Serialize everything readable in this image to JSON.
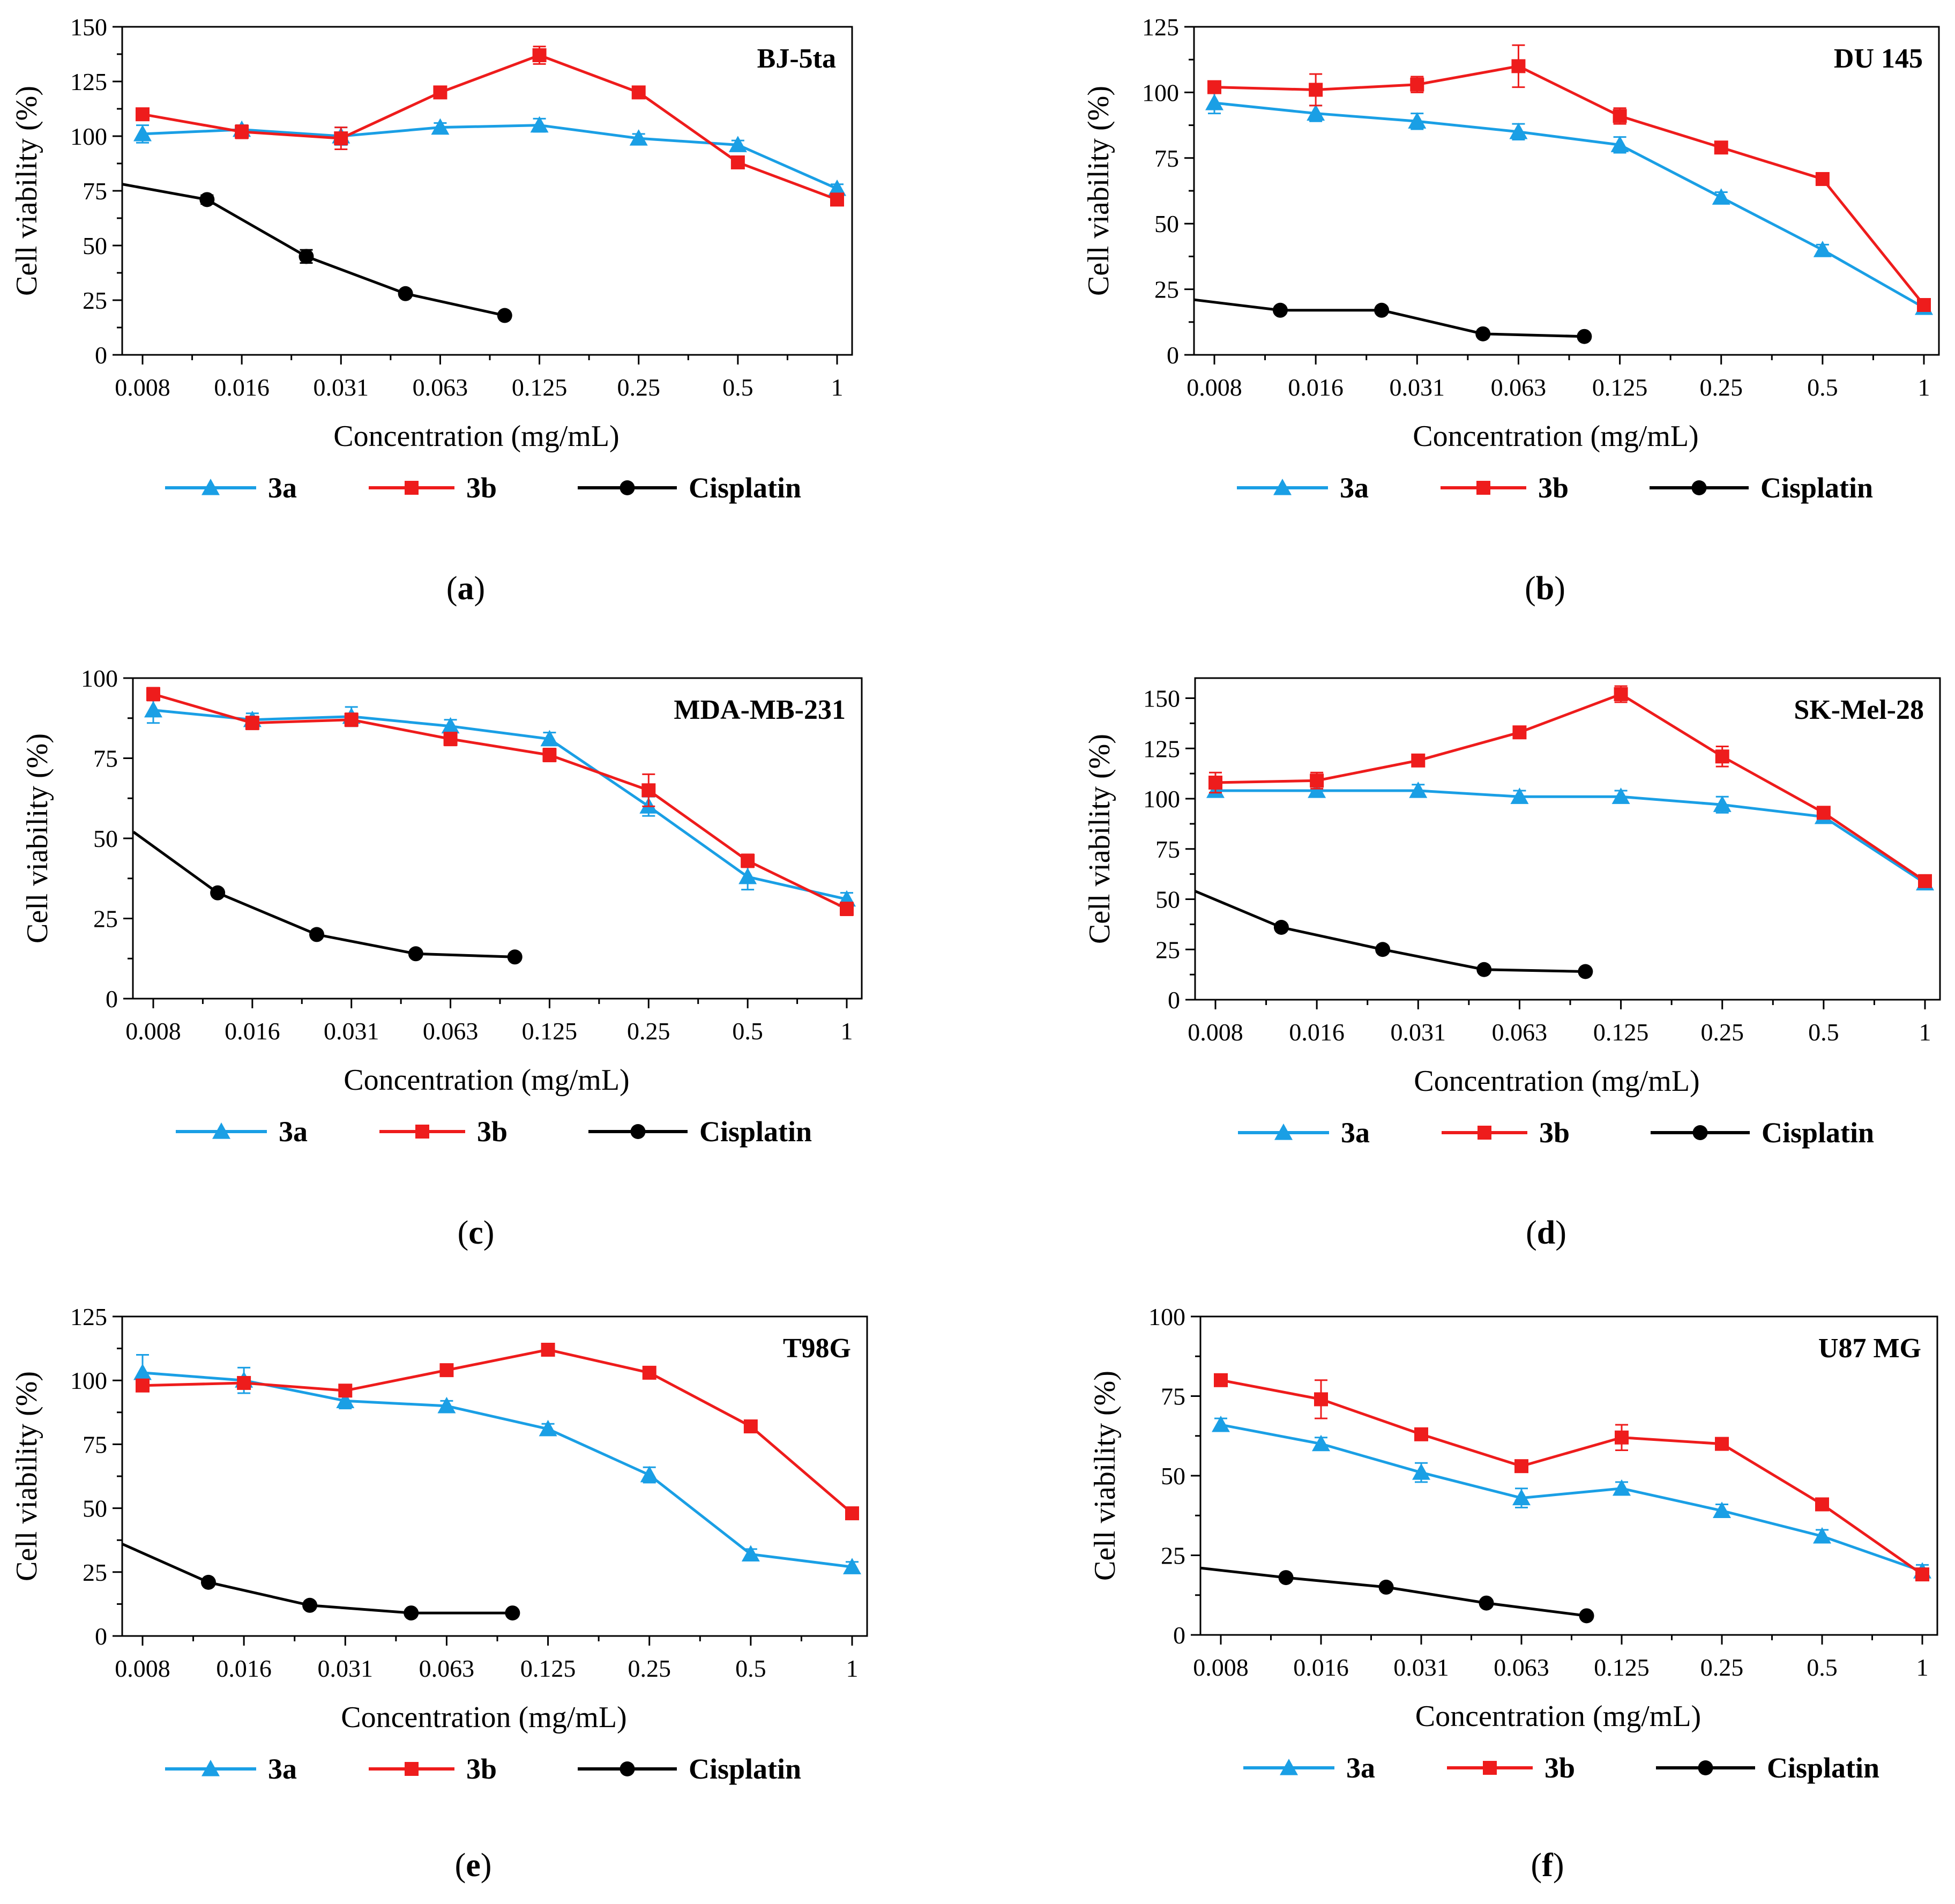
{
  "chart_data": [
    {
      "type": "line",
      "panel": "a",
      "title": "BJ-5ta",
      "xlabel": "Concentration (mg/mL)",
      "ylabel": "Cell viability (%)",
      "categories": [
        "0.008",
        "0.016",
        "0.031",
        "0.063",
        "0.125",
        "0.25",
        "0.5",
        "1"
      ],
      "ylim": [
        0,
        150
      ],
      "yticks": [
        0,
        25,
        50,
        75,
        100,
        125,
        150
      ],
      "series": [
        {
          "name": "3a",
          "color": "#1a9fe5",
          "marker": "triangle",
          "x": [
            0,
            1,
            2,
            3,
            4,
            5,
            6,
            7
          ],
          "values": [
            101,
            103,
            100,
            104,
            105,
            99,
            96,
            76
          ],
          "err": [
            4,
            2,
            4,
            2,
            3,
            2,
            2,
            2
          ]
        },
        {
          "name": "3b",
          "color": "#ee1c1c",
          "marker": "square",
          "x": [
            0,
            1,
            2,
            3,
            4,
            5,
            6,
            7
          ],
          "values": [
            110,
            102,
            99,
            120,
            137,
            120,
            88,
            71
          ],
          "err": [
            2,
            3,
            5,
            2,
            4,
            2,
            2,
            2
          ]
        },
        {
          "name": "Cisplatin",
          "color": "#000000",
          "marker": "circle",
          "x": [
            -0.2,
            0.65,
            1.65,
            2.65,
            3.65
          ],
          "values": [
            78,
            71,
            45,
            28,
            18
          ],
          "err": [
            0,
            2,
            3,
            1,
            1
          ]
        }
      ],
      "caption": {
        "open": "(",
        "letter": "a",
        "close": ")"
      }
    },
    {
      "type": "line",
      "panel": "b",
      "title": "DU 145",
      "xlabel": "Concentration (mg/mL)",
      "ylabel": "Cell viability (%)",
      "categories": [
        "0.008",
        "0.016",
        "0.031",
        "0.063",
        "0.125",
        "0.25",
        "0.5",
        "1"
      ],
      "ylim": [
        0,
        125
      ],
      "yticks": [
        0,
        25,
        50,
        75,
        100,
        125
      ],
      "series": [
        {
          "name": "3a",
          "color": "#1a9fe5",
          "marker": "triangle",
          "x": [
            0,
            1,
            2,
            3,
            4,
            5,
            6,
            7
          ],
          "values": [
            96,
            92,
            89,
            85,
            80,
            60,
            40,
            18
          ],
          "err": [
            4,
            3,
            3,
            3,
            3,
            2,
            2,
            2
          ]
        },
        {
          "name": "3b",
          "color": "#ee1c1c",
          "marker": "square",
          "x": [
            0,
            1,
            2,
            3,
            4,
            5,
            6,
            7
          ],
          "values": [
            102,
            101,
            103,
            110,
            91,
            79,
            67,
            19
          ],
          "err": [
            2,
            6,
            3,
            8,
            3,
            2,
            2,
            2
          ]
        },
        {
          "name": "Cisplatin",
          "color": "#000000",
          "marker": "circle",
          "x": [
            -0.2,
            0.65,
            1.65,
            2.65,
            3.65
          ],
          "values": [
            21,
            17,
            17,
            8,
            7
          ],
          "err": [
            0,
            1,
            1,
            1,
            1
          ]
        }
      ],
      "caption": {
        "open": "(",
        "letter": "b",
        "close": ")"
      }
    },
    {
      "type": "line",
      "panel": "c",
      "title": "MDA-MB-231",
      "xlabel": "Concentration (mg/mL)",
      "ylabel": "Cell viability (%)",
      "categories": [
        "0.008",
        "0.016",
        "0.031",
        "0.063",
        "0.125",
        "0.25",
        "0.5",
        "1"
      ],
      "ylim": [
        0,
        100
      ],
      "yticks": [
        0,
        25,
        50,
        75,
        100
      ],
      "series": [
        {
          "name": "3a",
          "color": "#1a9fe5",
          "marker": "triangle",
          "x": [
            0,
            1,
            2,
            3,
            4,
            5,
            6,
            7
          ],
          "values": [
            90,
            87,
            88,
            85,
            81,
            60,
            38,
            31
          ],
          "err": [
            4,
            2,
            3,
            2,
            2,
            3,
            4,
            2
          ]
        },
        {
          "name": "3b",
          "color": "#ee1c1c",
          "marker": "square",
          "x": [
            0,
            1,
            2,
            3,
            4,
            5,
            6,
            7
          ],
          "values": [
            95,
            86,
            87,
            81,
            76,
            65,
            43,
            28
          ],
          "err": [
            2,
            2,
            2,
            2,
            2,
            5,
            2,
            2
          ]
        },
        {
          "name": "Cisplatin",
          "color": "#000000",
          "marker": "circle",
          "x": [
            -0.2,
            0.65,
            1.65,
            2.65,
            3.65
          ],
          "values": [
            52,
            33,
            20,
            14,
            13
          ],
          "err": [
            0,
            1,
            1,
            1,
            1
          ]
        }
      ],
      "caption": {
        "open": "(",
        "letter": "c",
        "close": ")"
      }
    },
    {
      "type": "line",
      "panel": "d",
      "title": "SK-Mel-28",
      "xlabel": "Concentration (mg/mL)",
      "ylabel": "Cell viability (%)",
      "categories": [
        "0.008",
        "0.016",
        "0.031",
        "0.063",
        "0.125",
        "0.25",
        "0.5",
        "1"
      ],
      "ylim": [
        0,
        160
      ],
      "yticks": [
        0,
        25,
        50,
        75,
        100,
        125,
        150
      ],
      "series": [
        {
          "name": "3a",
          "color": "#1a9fe5",
          "marker": "triangle",
          "x": [
            0,
            1,
            2,
            3,
            4,
            5,
            6,
            7
          ],
          "values": [
            104,
            104,
            104,
            101,
            101,
            97,
            91,
            58
          ],
          "err": [
            3,
            3,
            3,
            3,
            3,
            4,
            3,
            3
          ]
        },
        {
          "name": "3b",
          "color": "#ee1c1c",
          "marker": "square",
          "x": [
            0,
            1,
            2,
            3,
            4,
            5,
            6,
            7
          ],
          "values": [
            108,
            109,
            119,
            133,
            152,
            121,
            93,
            59
          ],
          "err": [
            5,
            4,
            3,
            2,
            4,
            5,
            3,
            2
          ]
        },
        {
          "name": "Cisplatin",
          "color": "#000000",
          "marker": "circle",
          "x": [
            -0.2,
            0.65,
            1.65,
            2.65,
            3.65
          ],
          "values": [
            54,
            36,
            25,
            15,
            14
          ],
          "err": [
            0,
            1,
            1,
            1,
            1
          ]
        }
      ],
      "caption": {
        "open": "(",
        "letter": "d",
        "close": ")"
      }
    },
    {
      "type": "line",
      "panel": "e",
      "title": "T98G",
      "xlabel": "Concentration (mg/mL)",
      "ylabel": "Cell viability (%)",
      "categories": [
        "0.008",
        "0.016",
        "0.031",
        "0.063",
        "0.125",
        "0.25",
        "0.5",
        "1"
      ],
      "ylim": [
        0,
        125
      ],
      "yticks": [
        0,
        25,
        50,
        75,
        100,
        125
      ],
      "series": [
        {
          "name": "3a",
          "color": "#1a9fe5",
          "marker": "triangle",
          "x": [
            0,
            1,
            2,
            3,
            4,
            5,
            6,
            7
          ],
          "values": [
            103,
            100,
            92,
            90,
            81,
            63,
            32,
            27
          ],
          "err": [
            7,
            5,
            3,
            2,
            2,
            3,
            2,
            2
          ]
        },
        {
          "name": "3b",
          "color": "#ee1c1c",
          "marker": "square",
          "x": [
            0,
            1,
            2,
            3,
            4,
            5,
            6,
            7
          ],
          "values": [
            98,
            99,
            96,
            104,
            112,
            103,
            82,
            48
          ],
          "err": [
            2,
            2,
            2,
            1,
            1,
            1,
            1,
            1
          ]
        },
        {
          "name": "Cisplatin",
          "color": "#000000",
          "marker": "circle",
          "x": [
            -0.2,
            0.65,
            1.65,
            2.65,
            3.65
          ],
          "values": [
            36,
            21,
            12,
            9,
            9
          ],
          "err": [
            0,
            1,
            1,
            1,
            1
          ]
        }
      ],
      "caption": {
        "open": "(",
        "letter": "e",
        "close": ")"
      }
    },
    {
      "type": "line",
      "panel": "f",
      "title": "U87 MG",
      "xlabel": "Concentration (mg/mL)",
      "ylabel": "Cell viability (%)",
      "categories": [
        "0.008",
        "0.016",
        "0.031",
        "0.063",
        "0.125",
        "0.25",
        "0.5",
        "1"
      ],
      "ylim": [
        0,
        100
      ],
      "yticks": [
        0,
        25,
        50,
        75,
        100
      ],
      "series": [
        {
          "name": "3a",
          "color": "#1a9fe5",
          "marker": "triangle",
          "x": [
            0,
            1,
            2,
            3,
            4,
            5,
            6,
            7
          ],
          "values": [
            66,
            60,
            51,
            43,
            46,
            39,
            31,
            20
          ],
          "err": [
            2,
            2,
            3,
            3,
            2,
            2,
            2,
            2
          ]
        },
        {
          "name": "3b",
          "color": "#ee1c1c",
          "marker": "square",
          "x": [
            0,
            1,
            2,
            3,
            4,
            5,
            6,
            7
          ],
          "values": [
            80,
            74,
            63,
            53,
            62,
            60,
            41,
            19
          ],
          "err": [
            1,
            6,
            1,
            1,
            4,
            1,
            1,
            1
          ]
        },
        {
          "name": "Cisplatin",
          "color": "#000000",
          "marker": "circle",
          "x": [
            -0.2,
            0.65,
            1.65,
            2.65,
            3.65
          ],
          "values": [
            21,
            18,
            15,
            10,
            6
          ],
          "err": [
            0,
            1,
            1,
            1,
            1
          ]
        }
      ],
      "caption": {
        "open": "(",
        "letter": "f",
        "close": ")"
      }
    }
  ]
}
